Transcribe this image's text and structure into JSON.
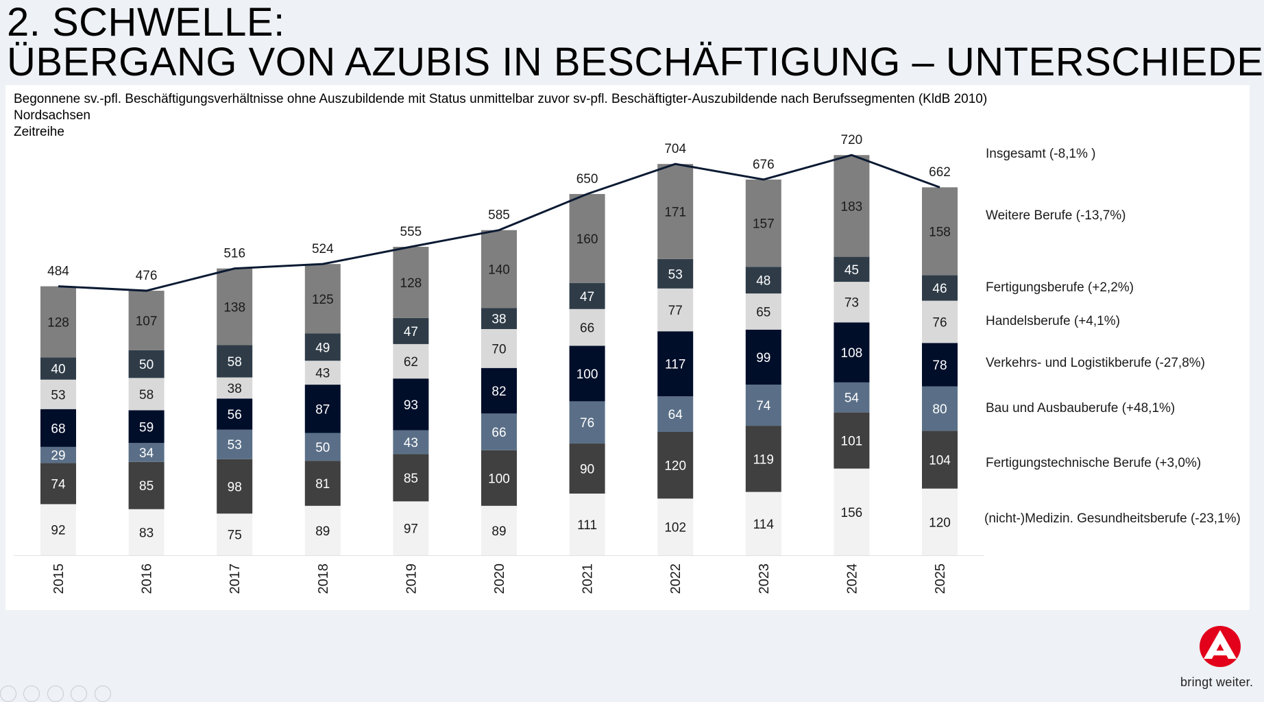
{
  "header": {
    "title_line1": "2. SCHWELLE:",
    "title_line2": "ÜBERGANG VON AZUBIS IN BESCHÄFTIGUNG – UNTERSCHIEDE"
  },
  "chart_data": {
    "type": "bar",
    "stacked": true,
    "title": "Begonnene sv.-pfl. Beschäftigungsverhältnisse ohne Auszubildende mit Status unmittelbar zuvor sv-pfl. Beschäftigter-Auszubildende nach Berufssegmenten (KldB 2010)",
    "subtitle_lines": [
      "Nordsachsen",
      "Zeitreihe"
    ],
    "categories": [
      "2015",
      "2016",
      "2017",
      "2018",
      "2019",
      "2020",
      "2021",
      "2022",
      "2023",
      "2024",
      "2025"
    ],
    "ylim": [
      0,
      740
    ],
    "grid": false,
    "legend": "right",
    "series": [
      {
        "name": "(nicht-)Medizin. Gesundheitsberufe (-23,1%)",
        "color": "#f2f2f2",
        "label_color": "#1a1a1a",
        "values": [
          92,
          83,
          75,
          89,
          97,
          89,
          111,
          102,
          114,
          156,
          120
        ]
      },
      {
        "name": "Fertigungstechnische Berufe (+3,0%)",
        "color": "#404040",
        "label_color": "#ffffff",
        "values": [
          74,
          85,
          98,
          81,
          85,
          100,
          90,
          120,
          119,
          101,
          104
        ]
      },
      {
        "name": "Bau und Ausbauberufe (+48,1%)",
        "color": "#5a6f87",
        "label_color": "#ffffff",
        "values": [
          29,
          34,
          53,
          50,
          43,
          66,
          76,
          64,
          74,
          54,
          80
        ]
      },
      {
        "name": "Verkehrs- und Logistikberufe (-27,8%)",
        "color": "#000e2a",
        "label_color": "#ffffff",
        "values": [
          68,
          59,
          56,
          87,
          93,
          82,
          100,
          117,
          99,
          108,
          78
        ]
      },
      {
        "name": "Handelsberufe (+4,1%)",
        "color": "#d9d9d9",
        "label_color": "#1a1a1a",
        "values": [
          53,
          58,
          38,
          43,
          62,
          70,
          66,
          77,
          65,
          73,
          76
        ]
      },
      {
        "name": "Fertigungsberufe (+2,2%)",
        "color": "#2f3c48",
        "label_color": "#ffffff",
        "values": [
          40,
          50,
          58,
          49,
          47,
          38,
          47,
          53,
          48,
          45,
          46
        ]
      },
      {
        "name": "Weitere Berufe (-13,7%)",
        "color": "#7f7f7f",
        "label_color": "#1a1a1a",
        "values": [
          128,
          107,
          138,
          125,
          128,
          140,
          160,
          171,
          157,
          183,
          158
        ]
      }
    ],
    "total": {
      "name": "Insgesamt (-8,1% )",
      "color": "#0b1a33",
      "values": [
        484,
        476,
        516,
        524,
        555,
        585,
        650,
        704,
        676,
        720,
        662
      ]
    }
  },
  "branding": {
    "slogan": "bringt weiter.",
    "logo_icon": "arbeitsagentur-logo-icon",
    "logo_color": "#e2001a"
  }
}
